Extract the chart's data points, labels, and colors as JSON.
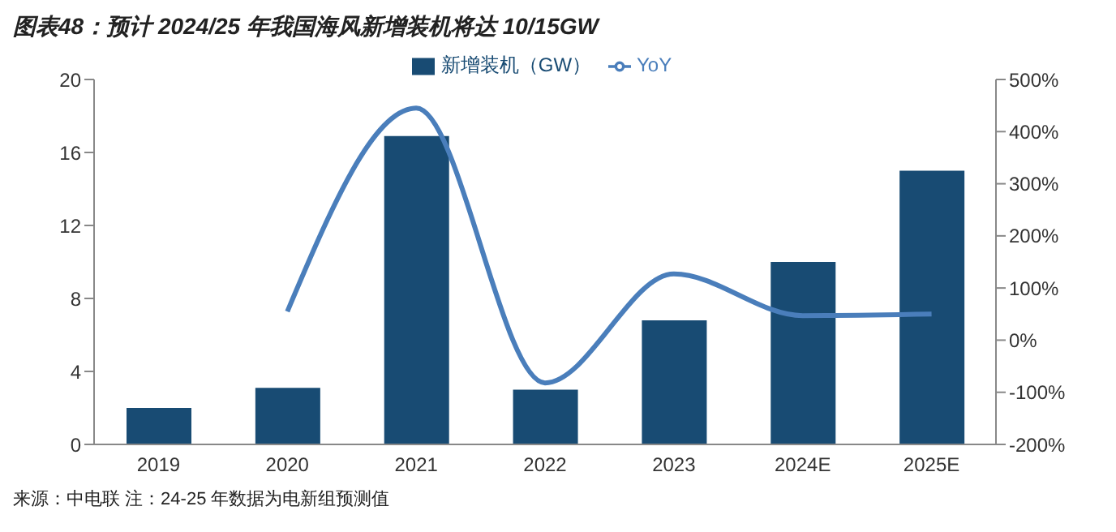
{
  "chart_data": {
    "type": "bar",
    "title": "图表48：预计 2024/25 年我国海风新增装机将达 10/15GW",
    "categories": [
      "2019",
      "2020",
      "2021",
      "2022",
      "2023",
      "2024E",
      "2025E"
    ],
    "series": [
      {
        "name": "新增装机（GW）",
        "color": "#184b73",
        "values": [
          2.0,
          3.1,
          16.9,
          3.0,
          6.8,
          10,
          15
        ]
      },
      {
        "name": "YoY",
        "type": "line",
        "axis": "y2",
        "color": "#4a7ebb",
        "values": [
          null,
          55,
          445,
          -82,
          127,
          47,
          50
        ]
      }
    ],
    "ylim": [
      0,
      20
    ],
    "yticks": [
      0,
      4,
      8,
      12,
      16,
      20
    ],
    "y2lim": [
      -200,
      500
    ],
    "y2ticks": [
      {
        "value": -200,
        "label": "-200%"
      },
      {
        "value": -100,
        "label": "-100%"
      },
      {
        "value": 0,
        "label": "0%"
      },
      {
        "value": 100,
        "label": "100%"
      },
      {
        "value": 200,
        "label": "200%"
      },
      {
        "value": 300,
        "label": "300%"
      },
      {
        "value": 400,
        "label": "400%"
      },
      {
        "value": 500,
        "label": "500%"
      }
    ],
    "grid": false,
    "legend": "top",
    "marker": "none",
    "annotations": [
      "来源：中电联 注：24-25 年数据为电新组预测值"
    ]
  }
}
